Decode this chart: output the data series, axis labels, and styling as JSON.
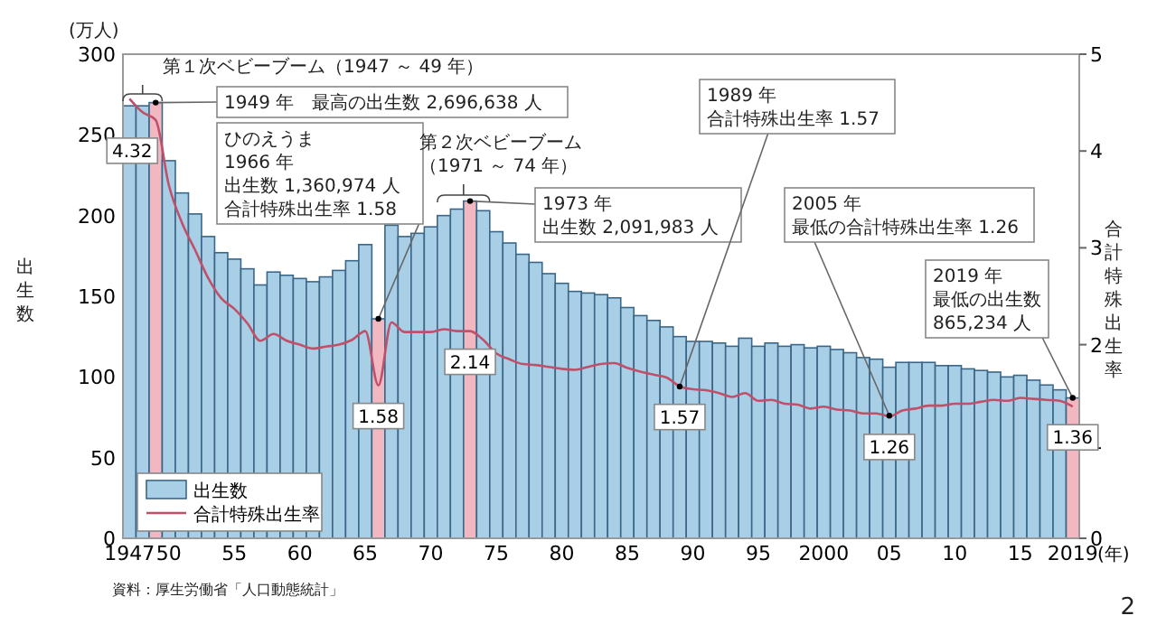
{
  "chart_data": {
    "type": "bar",
    "xlabel": "(年)",
    "ylabel": "出生数",
    "y2label": "合計特殊出生率",
    "x": [
      1947,
      1948,
      1949,
      1950,
      1951,
      1952,
      1953,
      1954,
      1955,
      1956,
      1957,
      1958,
      1959,
      1960,
      1961,
      1962,
      1963,
      1964,
      1965,
      1966,
      1967,
      1968,
      1969,
      1970,
      1971,
      1972,
      1973,
      1974,
      1975,
      1976,
      1977,
      1978,
      1979,
      1980,
      1981,
      1982,
      1983,
      1984,
      1985,
      1986,
      1987,
      1988,
      1989,
      1990,
      1991,
      1992,
      1993,
      1994,
      1995,
      1996,
      1997,
      1998,
      1999,
      2000,
      2001,
      2002,
      2003,
      2004,
      2005,
      2006,
      2007,
      2008,
      2009,
      2010,
      2011,
      2012,
      2013,
      2014,
      2015,
      2016,
      2017,
      2018,
      2019
    ],
    "xlim": [
      1946.5,
      2019.5
    ],
    "xticks": [
      {
        "value": 1947,
        "label": "1947"
      },
      {
        "value": 1950,
        "label": "50"
      },
      {
        "value": 1955,
        "label": "55"
      },
      {
        "value": 1960,
        "label": "60"
      },
      {
        "value": 1965,
        "label": "65"
      },
      {
        "value": 1970,
        "label": "70"
      },
      {
        "value": 1975,
        "label": "75"
      },
      {
        "value": 1980,
        "label": "80"
      },
      {
        "value": 1985,
        "label": "85"
      },
      {
        "value": 1990,
        "label": "90"
      },
      {
        "value": 1995,
        "label": "95"
      },
      {
        "value": 2000,
        "label": "2000"
      },
      {
        "value": 2005,
        "label": "05"
      },
      {
        "value": 2010,
        "label": "10"
      },
      {
        "value": 2015,
        "label": "15"
      },
      {
        "value": 2019,
        "label": "2019"
      }
    ],
    "ylim": [
      0,
      300
    ],
    "yticks": [
      0,
      50,
      100,
      150,
      200,
      250,
      300
    ],
    "y2lim": [
      0,
      5
    ],
    "y2ticks": [
      0,
      1,
      2,
      3,
      4,
      5
    ],
    "legend": "bottom left",
    "grid": false,
    "series": [
      {
        "name": "出生数",
        "color": "#a9cfe6",
        "colors": [
          "#a9cfe6",
          "#a9cfe6",
          "#f2b8c2",
          "#a9cfe6",
          "#a9cfe6",
          "#a9cfe6",
          "#a9cfe6",
          "#a9cfe6",
          "#a9cfe6",
          "#a9cfe6",
          "#a9cfe6",
          "#a9cfe6",
          "#a9cfe6",
          "#a9cfe6",
          "#a9cfe6",
          "#a9cfe6",
          "#a9cfe6",
          "#a9cfe6",
          "#a9cfe6",
          "#f2b8c2",
          "#a9cfe6",
          "#a9cfe6",
          "#a9cfe6",
          "#a9cfe6",
          "#a9cfe6",
          "#a9cfe6",
          "#f2b8c2",
          "#a9cfe6",
          "#a9cfe6",
          "#a9cfe6",
          "#a9cfe6",
          "#a9cfe6",
          "#a9cfe6",
          "#a9cfe6",
          "#a9cfe6",
          "#a9cfe6",
          "#a9cfe6",
          "#a9cfe6",
          "#a9cfe6",
          "#a9cfe6",
          "#a9cfe6",
          "#a9cfe6",
          "#a9cfe6",
          "#a9cfe6",
          "#a9cfe6",
          "#a9cfe6",
          "#a9cfe6",
          "#a9cfe6",
          "#a9cfe6",
          "#a9cfe6",
          "#a9cfe6",
          "#a9cfe6",
          "#a9cfe6",
          "#a9cfe6",
          "#a9cfe6",
          "#a9cfe6",
          "#a9cfe6",
          "#a9cfe6",
          "#a9cfe6",
          "#a9cfe6",
          "#a9cfe6",
          "#a9cfe6",
          "#a9cfe6",
          "#a9cfe6",
          "#a9cfe6",
          "#a9cfe6",
          "#a9cfe6",
          "#a9cfe6",
          "#a9cfe6",
          "#a9cfe6",
          "#a9cfe6",
          "#a9cfe6",
          "#f2b8c2"
        ],
        "values": [
          268,
          268,
          270,
          234,
          214,
          201,
          187,
          177,
          173,
          167,
          157,
          165,
          163,
          161,
          159,
          162,
          166,
          172,
          182,
          136,
          194,
          187,
          189,
          193,
          200,
          204,
          209,
          203,
          190,
          183,
          176,
          171,
          164,
          158,
          153,
          152,
          151,
          149,
          143,
          138,
          135,
          131,
          125,
          122,
          122,
          121,
          119,
          124,
          119,
          121,
          119,
          120,
          118,
          119,
          117,
          115,
          112,
          111,
          106,
          109,
          109,
          109,
          107,
          107,
          105,
          104,
          103,
          100,
          101,
          98,
          95,
          92,
          87
        ]
      },
      {
        "name": "合計特殊出生率",
        "type": "line",
        "axis": "y2",
        "color": "#c0506a",
        "marker": "none",
        "line_style": "solid",
        "values": [
          4.54,
          4.4,
          4.32,
          3.65,
          3.26,
          2.98,
          2.69,
          2.48,
          2.37,
          2.22,
          2.04,
          2.11,
          2.04,
          2.0,
          1.96,
          1.98,
          2.0,
          2.05,
          2.14,
          1.58,
          2.23,
          2.13,
          2.13,
          2.13,
          2.16,
          2.14,
          2.14,
          2.05,
          1.91,
          1.85,
          1.8,
          1.79,
          1.77,
          1.75,
          1.74,
          1.77,
          1.8,
          1.81,
          1.76,
          1.72,
          1.69,
          1.66,
          1.57,
          1.54,
          1.53,
          1.5,
          1.46,
          1.5,
          1.42,
          1.43,
          1.39,
          1.38,
          1.34,
          1.36,
          1.33,
          1.32,
          1.29,
          1.29,
          1.26,
          1.32,
          1.34,
          1.37,
          1.37,
          1.39,
          1.39,
          1.41,
          1.43,
          1.42,
          1.45,
          1.44,
          1.43,
          1.42,
          1.36
        ],
        "value_labels": [
          null,
          null,
          "4.32",
          null,
          null,
          null,
          null,
          null,
          null,
          null,
          null,
          null,
          null,
          null,
          null,
          null,
          null,
          null,
          null,
          "1.58",
          null,
          null,
          null,
          null,
          null,
          null,
          "2.14",
          null,
          null,
          null,
          null,
          null,
          null,
          null,
          null,
          null,
          null,
          null,
          null,
          null,
          null,
          null,
          "1.57",
          null,
          null,
          null,
          null,
          null,
          null,
          null,
          null,
          null,
          null,
          null,
          null,
          null,
          null,
          null,
          "1.26",
          null,
          null,
          null,
          null,
          null,
          null,
          null,
          null,
          null,
          null,
          null,
          null,
          null,
          "1.36"
        ]
      }
    ],
    "annotations": [
      "(万人)",
      "第１次ベビーブーム（1947 ～ 49 年）",
      {
        "text": "1949 年　最高の出生数 2,696,638 人",
        "x": 1949,
        "y": 270
      },
      {
        "text": "ひのえうま1966 年出生数 1,360,974 人合計特殊出生率 1.58",
        "x": 1966,
        "y": 136
      },
      "第２次ベビーブーム（1971 ～ 74 年）",
      {
        "text": "1973 年出生数 2,091,983 人",
        "x": 1973,
        "y": 209
      },
      {
        "text": "1989 年合計特殊出生率 1.57",
        "x": 1989,
        "y": 94
      },
      {
        "text": "2005 年最低の合計特殊出生率 1.26",
        "x": 2005,
        "y": 76
      },
      {
        "text": "2019 年最低の出生数865,234 人",
        "x": 2019,
        "y": 87
      },
      "資料：厚生労働省「人口動態統計」",
      "2"
    ]
  }
}
